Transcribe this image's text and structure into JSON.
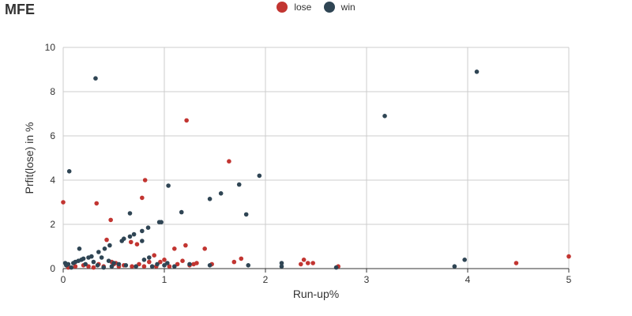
{
  "chart_data": {
    "type": "scatter",
    "title": "MFE",
    "xlabel": "Run-up%",
    "ylabel": "Prfit(lose) in %",
    "xlim": [
      0,
      5
    ],
    "ylim": [
      0,
      10
    ],
    "x_ticks": [
      0,
      1,
      2,
      3,
      4,
      5
    ],
    "y_ticks": [
      0,
      2,
      4,
      6,
      8,
      10
    ],
    "grid": true,
    "legend_position": "top-center",
    "series": [
      {
        "name": "lose",
        "color": "#c23531",
        "points": [
          [
            0.0,
            3.0
          ],
          [
            0.33,
            2.95
          ],
          [
            0.47,
            2.2
          ],
          [
            0.43,
            1.3
          ],
          [
            0.78,
            3.2
          ],
          [
            0.81,
            4.0
          ],
          [
            1.22,
            6.7
          ],
          [
            1.64,
            4.85
          ],
          [
            0.67,
            1.2
          ],
          [
            0.73,
            1.1
          ],
          [
            0.9,
            0.6
          ],
          [
            0.96,
            0.3
          ],
          [
            1.1,
            0.9
          ],
          [
            1.18,
            0.35
          ],
          [
            1.21,
            1.05
          ],
          [
            1.29,
            0.2
          ],
          [
            1.4,
            0.9
          ],
          [
            1.47,
            0.2
          ],
          [
            1.69,
            0.3
          ],
          [
            1.76,
            0.45
          ],
          [
            2.35,
            0.2
          ],
          [
            2.38,
            0.4
          ],
          [
            2.42,
            0.25
          ],
          [
            2.47,
            0.25
          ],
          [
            2.72,
            0.1
          ],
          [
            4.48,
            0.25
          ],
          [
            5.0,
            0.55
          ],
          [
            0.05,
            0.05
          ],
          [
            0.12,
            0.1
          ],
          [
            0.2,
            0.15
          ],
          [
            0.25,
            0.1
          ],
          [
            0.3,
            0.05
          ],
          [
            0.35,
            0.2
          ],
          [
            0.4,
            0.1
          ],
          [
            0.48,
            0.3
          ],
          [
            0.5,
            0.2
          ],
          [
            0.52,
            0.25
          ],
          [
            0.55,
            0.1
          ],
          [
            0.6,
            0.15
          ],
          [
            0.68,
            0.1
          ],
          [
            0.75,
            0.2
          ],
          [
            0.8,
            0.1
          ],
          [
            0.85,
            0.3
          ],
          [
            0.92,
            0.1
          ],
          [
            1.0,
            0.4
          ],
          [
            1.05,
            0.1
          ],
          [
            1.13,
            0.2
          ],
          [
            1.25,
            0.15
          ],
          [
            1.32,
            0.25
          ]
        ]
      },
      {
        "name": "win",
        "color": "#2f4554",
        "points": [
          [
            0.32,
            8.6
          ],
          [
            4.09,
            8.9
          ],
          [
            3.18,
            6.9
          ],
          [
            0.06,
            4.4
          ],
          [
            1.94,
            4.2
          ],
          [
            1.04,
            3.75
          ],
          [
            1.74,
            3.8
          ],
          [
            1.56,
            3.4
          ],
          [
            1.45,
            3.15
          ],
          [
            1.81,
            2.45
          ],
          [
            1.17,
            2.55
          ],
          [
            0.66,
            2.5
          ],
          [
            0.97,
            2.1
          ],
          [
            0.95,
            2.1
          ],
          [
            0.84,
            1.85
          ],
          [
            0.78,
            1.7
          ],
          [
            0.7,
            1.55
          ],
          [
            0.66,
            1.45
          ],
          [
            0.6,
            1.35
          ],
          [
            0.58,
            1.25
          ],
          [
            0.78,
            1.25
          ],
          [
            0.46,
            1.05
          ],
          [
            0.41,
            0.9
          ],
          [
            0.35,
            0.75
          ],
          [
            0.16,
            0.9
          ],
          [
            0.28,
            0.55
          ],
          [
            0.25,
            0.5
          ],
          [
            0.2,
            0.45
          ],
          [
            0.18,
            0.4
          ],
          [
            0.15,
            0.35
          ],
          [
            0.12,
            0.3
          ],
          [
            0.1,
            0.25
          ],
          [
            0.05,
            0.2
          ],
          [
            0.03,
            0.15
          ],
          [
            0.02,
            0.25
          ],
          [
            0.38,
            0.5
          ],
          [
            0.45,
            0.35
          ],
          [
            0.5,
            0.25
          ],
          [
            0.55,
            0.2
          ],
          [
            0.62,
            0.15
          ],
          [
            0.72,
            0.1
          ],
          [
            0.8,
            0.4
          ],
          [
            0.85,
            0.5
          ],
          [
            0.88,
            0.1
          ],
          [
            0.93,
            0.2
          ],
          [
            1.0,
            0.15
          ],
          [
            1.03,
            0.25
          ],
          [
            1.1,
            0.1
          ],
          [
            1.25,
            0.2
          ],
          [
            1.45,
            0.15
          ],
          [
            1.83,
            0.15
          ],
          [
            2.16,
            0.25
          ],
          [
            2.16,
            0.1
          ],
          [
            2.7,
            0.05
          ],
          [
            3.87,
            0.1
          ],
          [
            3.97,
            0.4
          ],
          [
            0.08,
            0.05
          ],
          [
            0.22,
            0.2
          ],
          [
            0.3,
            0.3
          ],
          [
            0.34,
            0.15
          ],
          [
            0.4,
            0.05
          ],
          [
            0.48,
            0.1
          ]
        ]
      }
    ]
  }
}
